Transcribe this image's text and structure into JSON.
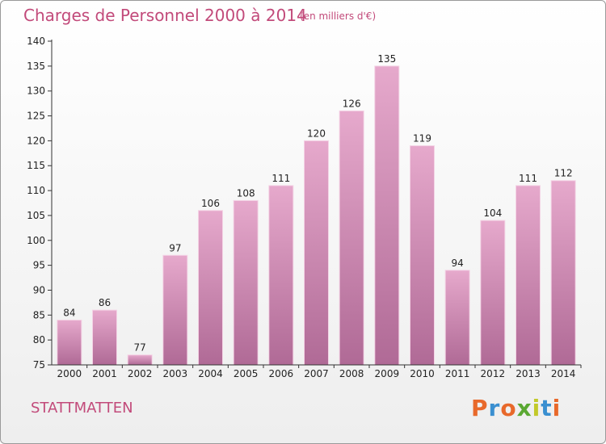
{
  "header": {
    "title": "Charges de Personnel 2000 à 2014",
    "subtitle": "(en milliers d'€)"
  },
  "footer": {
    "commune": "STATTMATTEN",
    "logo": "Proxiti",
    "logo_colors": [
      "#e8692b",
      "#3a8fd0",
      "#e8692b",
      "#5aa832",
      "#c2c92a",
      "#3a8fd0",
      "#e8692b"
    ]
  },
  "colors": {
    "accent": "#c24a7a",
    "bar_top": "#e6a9cc",
    "bar_bottom": "#b06a96",
    "axis": "#333333"
  },
  "chart_data": {
    "type": "bar",
    "title": "Charges de Personnel 2000 à 2014",
    "subtitle": "(en milliers d'€)",
    "categories": [
      "2000",
      "2001",
      "2002",
      "2003",
      "2004",
      "2005",
      "2006",
      "2007",
      "2008",
      "2009",
      "2010",
      "2011",
      "2012",
      "2013",
      "2014"
    ],
    "values": [
      84,
      86,
      77,
      97,
      106,
      108,
      111,
      120,
      126,
      135,
      119,
      94,
      104,
      111,
      112
    ],
    "ylim": [
      75,
      140
    ],
    "yticks": [
      75,
      80,
      85,
      90,
      95,
      100,
      105,
      110,
      115,
      120,
      125,
      130,
      135,
      140
    ],
    "grid": false,
    "show_value_labels": true
  }
}
